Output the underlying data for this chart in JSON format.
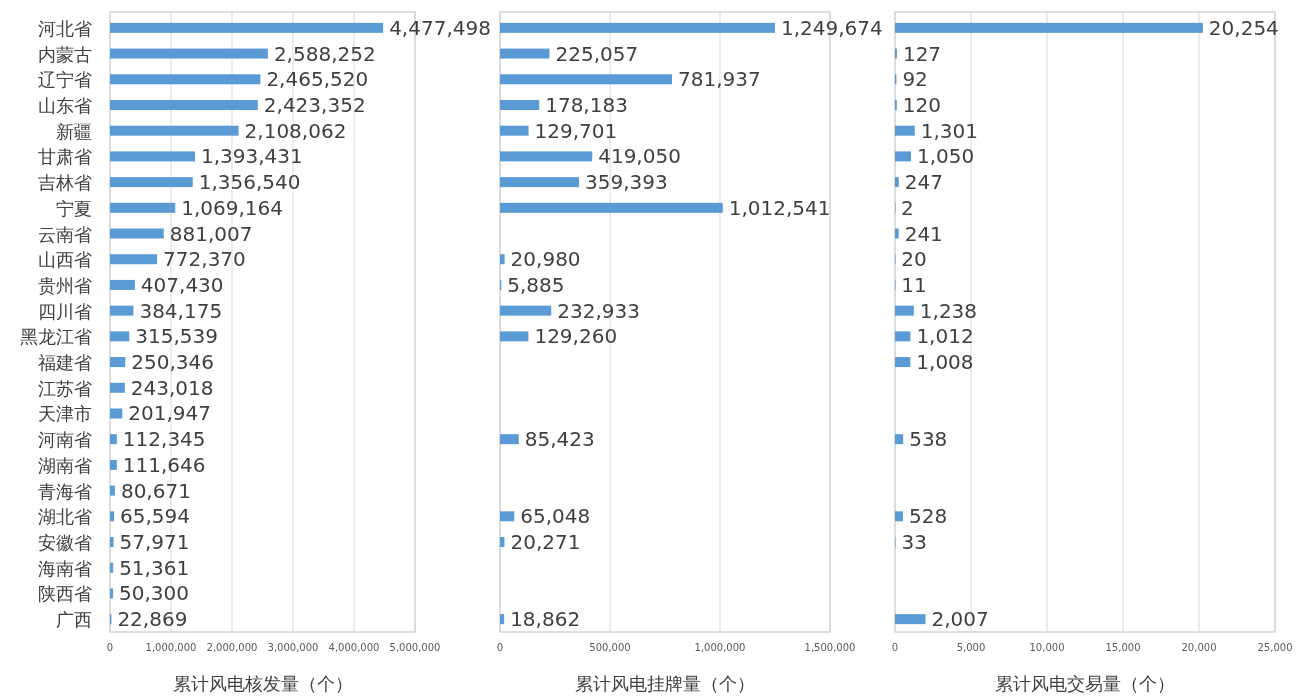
{
  "chart_data": [
    {
      "type": "bar",
      "orientation": "horizontal",
      "xlabel": "累计风电核发量（个）",
      "color": "#5b9bd5",
      "grid": "x",
      "categories": [
        "河北省",
        "内蒙古",
        "辽宁省",
        "山东省",
        "新疆",
        "甘肃省",
        "吉林省",
        "宁夏",
        "云南省",
        "山西省",
        "贵州省",
        "四川省",
        "黑龙江省",
        "福建省",
        "江苏省",
        "天津市",
        "河南省",
        "湖南省",
        "青海省",
        "湖北省",
        "安徽省",
        "海南省",
        "陕西省",
        "广西"
      ],
      "values": [
        4477498,
        2588252,
        2465520,
        2423352,
        2108062,
        1393431,
        1356540,
        1069164,
        881007,
        772370,
        407430,
        384175,
        315539,
        250346,
        243018,
        201947,
        112345,
        111646,
        80671,
        65594,
        57971,
        51361,
        50300,
        22869
      ],
      "value_labels": [
        "4,477,498",
        "2,588,252",
        "2,465,520",
        "2,423,352",
        "2,108,062",
        "1,393,431",
        "1,356,540",
        "1,069,164",
        "881,007",
        "772,370",
        "407,430",
        "384,175",
        "315,539",
        "250,346",
        "243,018",
        "201,947",
        "112,345",
        "111,646",
        "80,671",
        "65,594",
        "57,971",
        "51,361",
        "50,300",
        "22,869"
      ],
      "xlim": [
        0,
        5000000
      ],
      "xticks": [
        {
          "value": 0,
          "label": "0"
        },
        {
          "value": 1000000,
          "label": "1,000,000"
        },
        {
          "value": 2000000,
          "label": "2,000,000"
        },
        {
          "value": 3000000,
          "label": "3,000,000"
        },
        {
          "value": 4000000,
          "label": "4,000,000"
        },
        {
          "value": 5000000,
          "label": "5,000,000"
        }
      ]
    },
    {
      "type": "bar",
      "orientation": "horizontal",
      "xlabel": "累计风电挂牌量（个）",
      "color": "#5b9bd5",
      "grid": "x",
      "tick_labels": "x",
      "categories": [
        null,
        null,
        null,
        null,
        null,
        null,
        null,
        null,
        null,
        null,
        null,
        null,
        null,
        null,
        null,
        null,
        null,
        null,
        null,
        null,
        null,
        null,
        null,
        null
      ],
      "values": [
        1249674,
        225057,
        781937,
        178183,
        129701,
        419050,
        359393,
        1012541,
        null,
        20980,
        5885,
        232933,
        129260,
        null,
        null,
        null,
        85423,
        null,
        null,
        65048,
        20271,
        null,
        null,
        18862
      ],
      "value_labels": [
        "1,249,674",
        "225,057",
        "781,937",
        "178,183",
        "129,701",
        "419,050",
        "359,393",
        "1,012,541",
        null,
        "20,980",
        "5,885",
        "232,933",
        "129,260",
        null,
        null,
        null,
        "85,423",
        null,
        null,
        "65,048",
        "20,271",
        null,
        null,
        "18,862"
      ],
      "xlim": [
        0,
        1500000
      ],
      "xticks": [
        {
          "value": 0,
          "label": "0"
        },
        {
          "value": 500000,
          "label": "500,000"
        },
        {
          "value": 1000000,
          "label": "1,000,000"
        },
        {
          "value": 1500000,
          "label": "1,500,000"
        }
      ]
    },
    {
      "type": "bar",
      "orientation": "horizontal",
      "xlabel": "累计风电交易量（个）",
      "color": "#5b9bd5",
      "grid": "x",
      "tick_labels": "x",
      "categories": [
        null,
        null,
        null,
        null,
        null,
        null,
        null,
        null,
        null,
        null,
        null,
        null,
        null,
        null,
        null,
        null,
        null,
        null,
        null,
        null,
        null,
        null,
        null,
        null
      ],
      "values": [
        20254,
        127,
        92,
        120,
        1301,
        1050,
        247,
        2,
        241,
        20,
        11,
        1238,
        1012,
        1008,
        null,
        null,
        538,
        null,
        null,
        528,
        33,
        null,
        null,
        2007
      ],
      "value_labels": [
        "20,254",
        "127",
        "92",
        "120",
        "1,301",
        "1,050",
        "247",
        "2",
        "241",
        "20",
        "11",
        "1,238",
        "1,012",
        "1,008",
        null,
        null,
        "538",
        null,
        null,
        "528",
        "33",
        null,
        null,
        "2,007"
      ],
      "xlim": [
        0,
        25000
      ],
      "xticks": [
        {
          "value": 0,
          "label": "0"
        },
        {
          "value": 5000,
          "label": "5,000"
        },
        {
          "value": 10000,
          "label": "10,000"
        },
        {
          "value": 15000,
          "label": "15,000"
        },
        {
          "value": 20000,
          "label": "20,000"
        },
        {
          "value": 25000,
          "label": "25,000"
        }
      ]
    }
  ]
}
